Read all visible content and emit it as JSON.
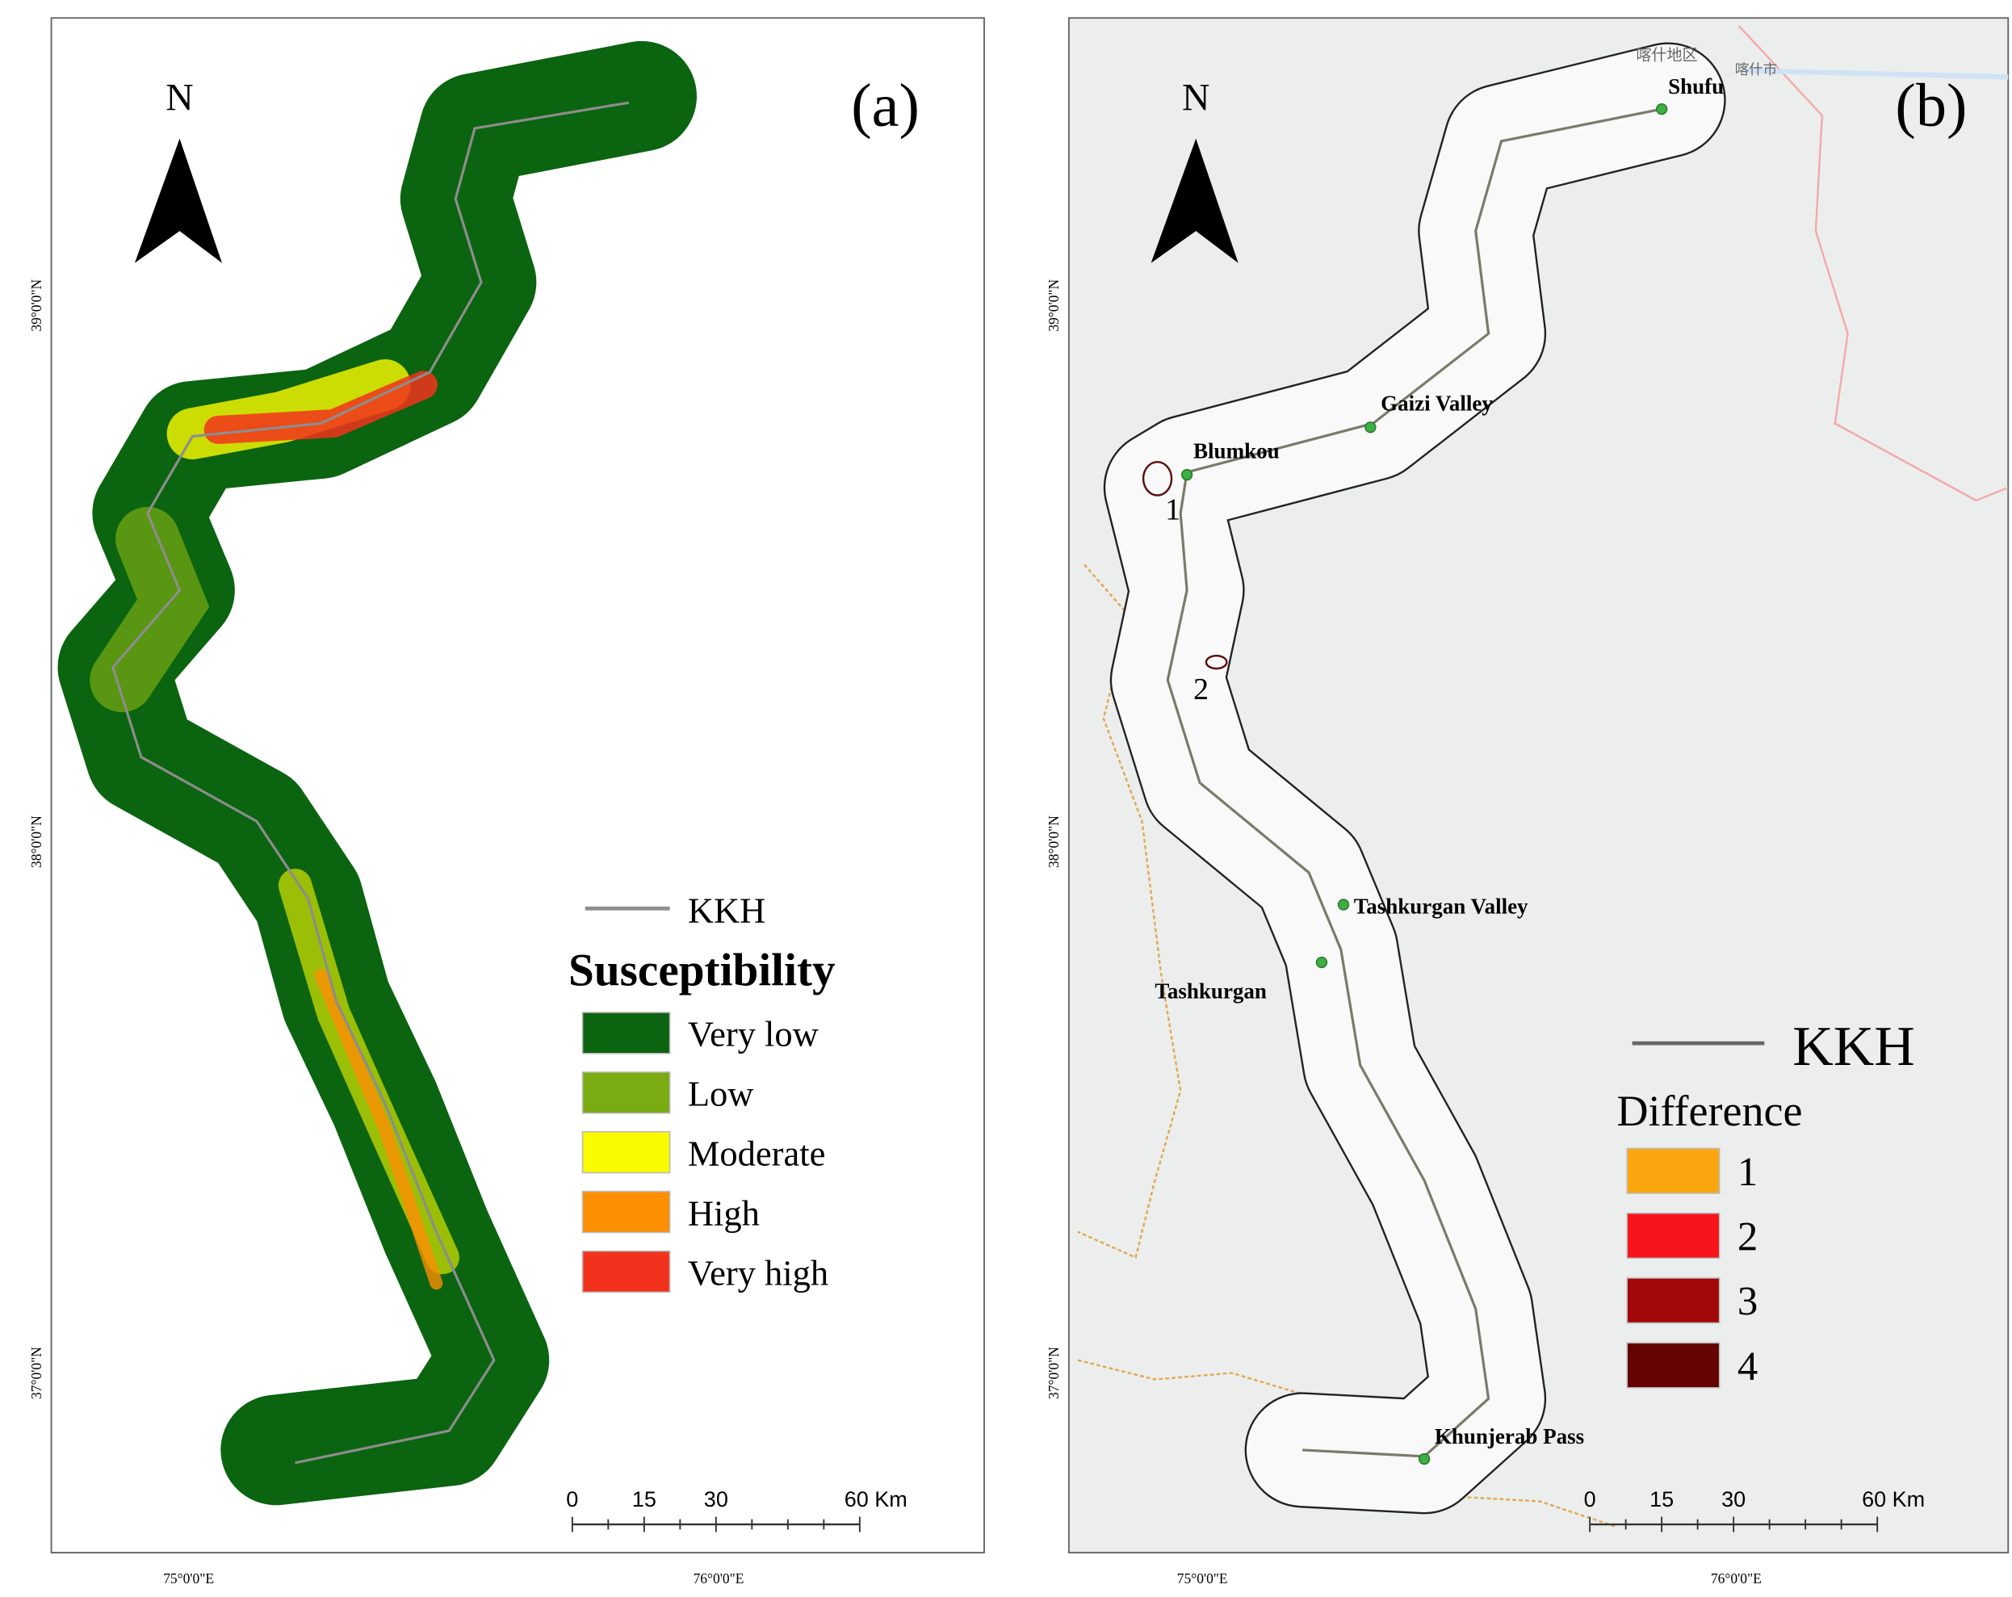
{
  "panels": [
    {
      "label": "(a)",
      "north": "N",
      "lat_labels": [
        "39°0'0\"N",
        "38°0'0\"N",
        "37°0'0\"N"
      ],
      "lon_labels": [
        "75°0'0\"E",
        "76°0'0\"E"
      ],
      "legend": {
        "line": "KKH",
        "title": "Susceptibility",
        "classes": [
          {
            "name": "Very low",
            "color": "#0b640f"
          },
          {
            "name": "Low",
            "color": "#7aab12"
          },
          {
            "name": "Moderate",
            "color": "#fbfb00"
          },
          {
            "name": "High",
            "color": "#fc8f00"
          },
          {
            "name": "Very high",
            "color": "#f2321c"
          }
        ]
      },
      "scale": [
        "0",
        "15",
        "30",
        "60 Km"
      ]
    },
    {
      "label": "(b)",
      "north": "N",
      "lat_labels": [
        "39°0'0\"N",
        "38°0'0\"N",
        "37°0'0\"N"
      ],
      "lon_labels": [
        "75°0'0\"E",
        "76°0'0\"E"
      ],
      "map_text": [
        "喀什地区",
        "喀什市"
      ],
      "places": [
        "Shufu",
        "Gaizi Valley",
        "Blumkou",
        "Tashkurgan Valley",
        "Tashkurgan",
        "Khunjerab Pass"
      ],
      "markers": [
        "1",
        "2"
      ],
      "legend": {
        "line": "KKH",
        "title": "Difference",
        "classes": [
          {
            "name": "1",
            "color": "#fca60f"
          },
          {
            "name": "2",
            "color": "#f7141a"
          },
          {
            "name": "3",
            "color": "#a30808"
          },
          {
            "name": "4",
            "color": "#650303"
          }
        ]
      },
      "scale": [
        "0",
        "15",
        "30",
        "60 Km"
      ]
    }
  ]
}
